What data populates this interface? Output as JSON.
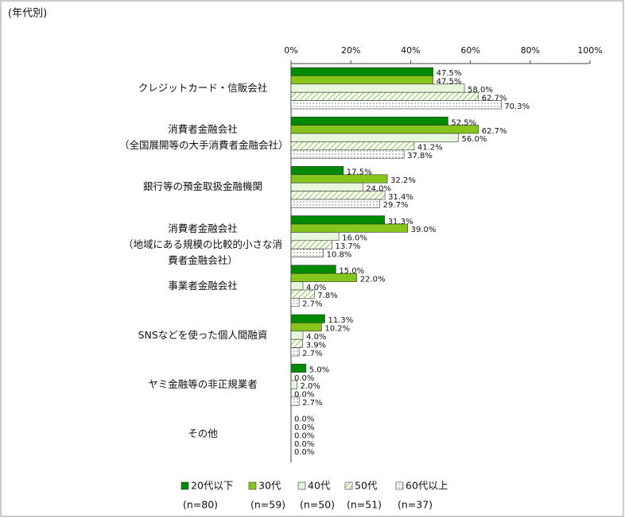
{
  "chart_data": {
    "type": "bar",
    "orientation": "horizontal",
    "subtitle": "(年代別)",
    "categories": [
      "クレジットカード・信販会社",
      "消費者金融会社\n（全国展開等の大手消費者金融会社）",
      "銀行等の預金取扱金融機関",
      "消費者金融会社\n（地域にある規模の比較的小さな消費者金融会社）",
      "事業者金融会社",
      "SNSなどを使った個人間融資",
      "ヤミ金融等の非正規業者",
      "その他"
    ],
    "series": [
      {
        "name": "20代以下",
        "n_label": "(n=80)",
        "color": "#008a00",
        "pattern": "solid",
        "values": [
          47.5,
          52.5,
          17.5,
          31.3,
          15.0,
          11.3,
          5.0,
          0.0
        ],
        "value_labels": [
          "47.5%",
          "52.5%",
          "17.5%",
          "31.3%",
          "15.0%",
          "11.3%",
          "5.0%",
          "0.0%"
        ]
      },
      {
        "name": "30代",
        "n_label": "(n=59)",
        "color": "#86c61c",
        "pattern": "solid",
        "values": [
          47.5,
          62.7,
          32.2,
          39.0,
          22.0,
          10.2,
          0.0,
          0.0
        ],
        "value_labels": [
          "47.5%",
          "62.7%",
          "32.2%",
          "39.0%",
          "22.0%",
          "10.2%",
          "0.0%",
          "0.0%"
        ]
      },
      {
        "name": "40代",
        "n_label": "(n=50)",
        "color": "#e6f7dc",
        "pattern": "solid",
        "values": [
          58.0,
          56.0,
          24.0,
          16.0,
          4.0,
          4.0,
          2.0,
          0.0
        ],
        "value_labels": [
          "58.0%",
          "56.0%",
          "24.0%",
          "16.0%",
          "4.0%",
          "4.0%",
          "2.0%",
          "0.0%"
        ]
      },
      {
        "name": "50代",
        "n_label": "(n=51)",
        "color": "#9bcf6a",
        "pattern": "hatch",
        "values": [
          62.7,
          41.2,
          31.4,
          13.7,
          7.8,
          3.9,
          0.0,
          0.0
        ],
        "value_labels": [
          "62.7%",
          "41.2%",
          "31.4%",
          "13.7%",
          "7.8%",
          "3.9%",
          "0.0%",
          "0.0%"
        ]
      },
      {
        "name": "60代以上",
        "n_label": "(n=37)",
        "color": "#7a9a7a",
        "pattern": "dots",
        "values": [
          70.3,
          37.8,
          29.7,
          10.8,
          2.7,
          2.7,
          2.7,
          0.0
        ],
        "value_labels": [
          "70.3%",
          "37.8%",
          "29.7%",
          "10.8%",
          "2.7%",
          "2.7%",
          "2.7%",
          "0.0%"
        ]
      }
    ],
    "xlim": [
      0,
      100
    ],
    "xticks": [
      {
        "value": 0,
        "label": "0%"
      },
      {
        "value": 20,
        "label": "20%"
      },
      {
        "value": 40,
        "label": "40%"
      },
      {
        "value": 60,
        "label": "60%"
      },
      {
        "value": 80,
        "label": "80%"
      },
      {
        "value": 100,
        "label": "100%"
      }
    ]
  }
}
